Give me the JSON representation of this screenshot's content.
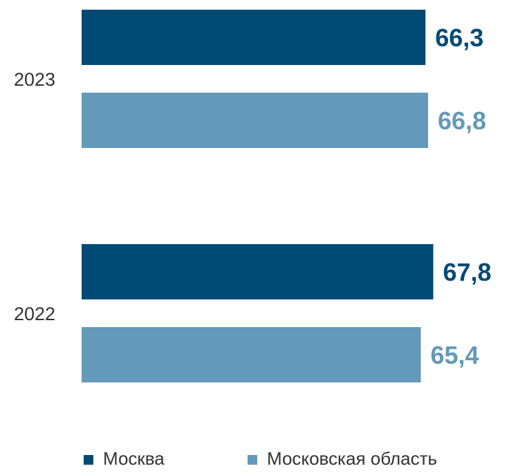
{
  "chart_data": {
    "type": "bar",
    "orientation": "horizontal",
    "categories": [
      "2023",
      "2022"
    ],
    "series": [
      {
        "name": "Москва",
        "color": "#004a76",
        "values": [
          66.3,
          67.8
        ],
        "labels": [
          "66,3",
          "67,8"
        ]
      },
      {
        "name": "Московская область",
        "color": "#6399bb",
        "values": [
          66.8,
          65.4
        ],
        "labels": [
          "66,8",
          "65,4"
        ]
      }
    ],
    "title": "",
    "xlabel": "",
    "ylabel": "",
    "legend_position": "bottom",
    "grid": false
  }
}
